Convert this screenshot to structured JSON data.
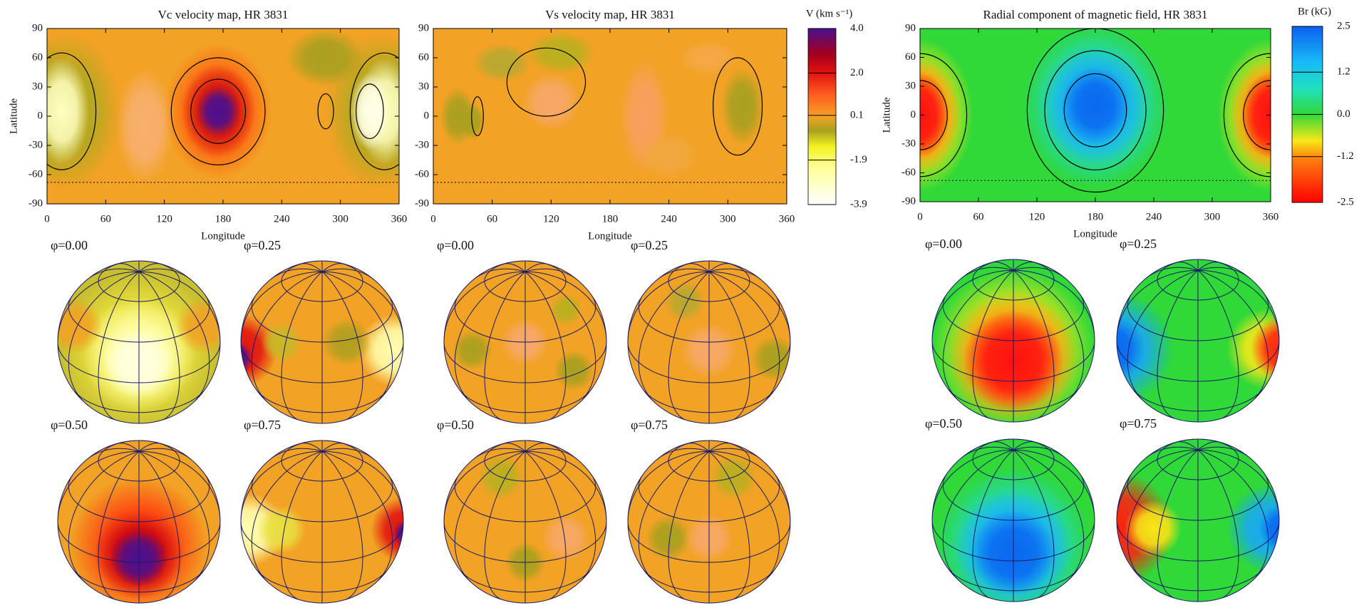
{
  "chart_data": [
    {
      "type": "heatmap",
      "title": "Vc velocity map, HR 3831",
      "xlabel": "Longitude",
      "ylabel": "Latitude",
      "xlim": [
        0,
        360
      ],
      "ylim": [
        -90,
        90
      ],
      "xticks": [
        0,
        60,
        120,
        180,
        240,
        300,
        360
      ],
      "yticks": [
        -90,
        -60,
        -30,
        0,
        30,
        60,
        90
      ],
      "dotted_lat": -68,
      "phases": [
        "φ=0.00",
        "φ=0.25",
        "φ=0.50",
        "φ=0.75"
      ]
    },
    {
      "type": "heatmap",
      "title": "Vs velocity map, HR 3831",
      "xlabel": "Longitude",
      "xlim": [
        0,
        360
      ],
      "ylim": [
        -90,
        90
      ],
      "xticks": [
        0,
        60,
        120,
        180,
        240,
        300,
        360
      ],
      "yticks": [
        -90,
        -60,
        -30,
        0,
        30,
        60,
        90
      ],
      "dotted_lat": -68,
      "phases": [
        "φ=0.00",
        "φ=0.25",
        "φ=0.50",
        "φ=0.75"
      ],
      "colorbar": {
        "title": "V (km s⁻¹)",
        "lim": [
          -3.9,
          4.0
        ],
        "ticks": [
          {
            "value": 4.0,
            "label": "4.0"
          },
          {
            "value": 2.0,
            "label": "2.0"
          },
          {
            "value": 0.1,
            "label": "0.1"
          },
          {
            "value": -1.9,
            "label": "-1.9"
          },
          {
            "value": -3.9,
            "label": "-3.9"
          }
        ]
      }
    },
    {
      "type": "heatmap",
      "title": "Radial component of magnetic field, HR 3831",
      "xlabel": "Longitude",
      "ylabel": "Latitude",
      "xlim": [
        0,
        360
      ],
      "ylim": [
        -90,
        90
      ],
      "xticks": [
        0,
        60,
        120,
        180,
        240,
        300,
        360
      ],
      "yticks": [
        -90,
        -60,
        -30,
        0,
        30,
        60,
        90
      ],
      "dotted_lat": -68,
      "phases": [
        "φ=0.00",
        "φ=0.25",
        "φ=0.50",
        "φ=0.75"
      ],
      "colorbar": {
        "title": "Br (kG)",
        "lim": [
          -2.5,
          2.5
        ],
        "ticks": [
          {
            "value": 2.5,
            "label": "2.5"
          },
          {
            "value": 1.2,
            "label": "1.2"
          },
          {
            "value": 0.0,
            "label": "0.0"
          },
          {
            "value": -1.2,
            "label": "-1.2"
          },
          {
            "value": -2.5,
            "label": "-2.5"
          }
        ]
      }
    }
  ]
}
